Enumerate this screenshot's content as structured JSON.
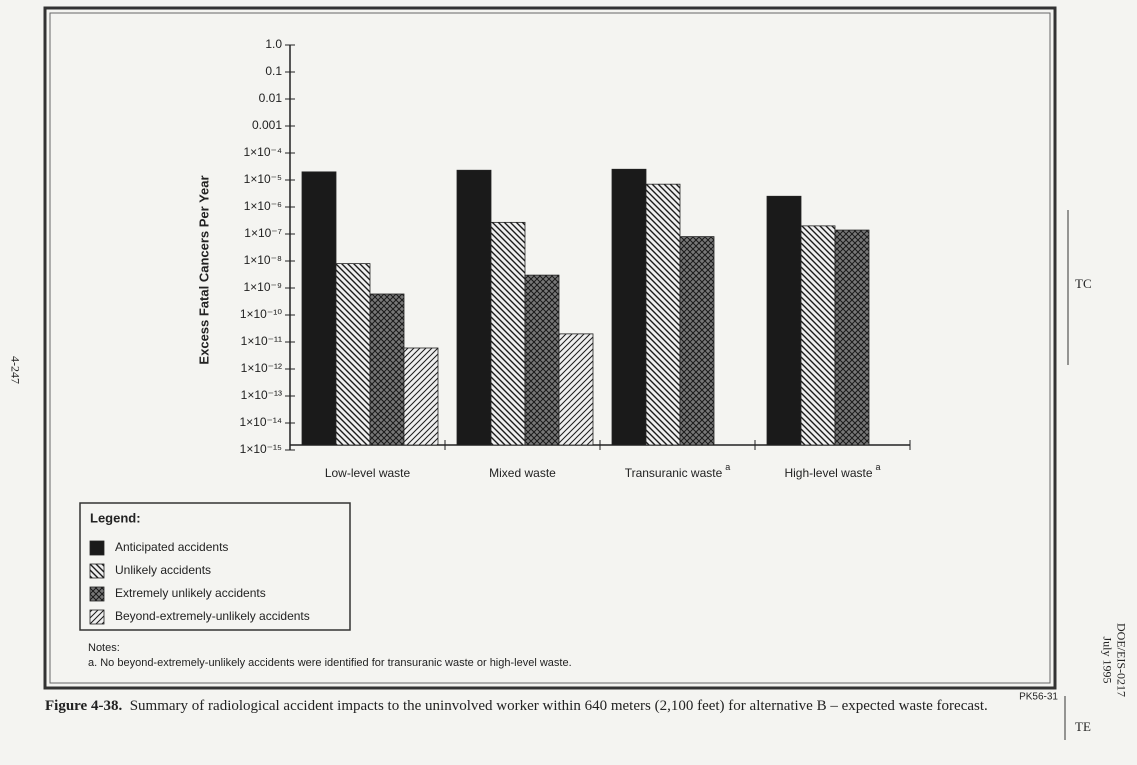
{
  "chart_data": {
    "type": "bar",
    "y_label": "Excess Fatal Cancers Per Year",
    "log_y": true,
    "categories": [
      "Low-level waste",
      "Mixed waste",
      "Transuranic waste",
      "High-level waste"
    ],
    "category_notes": [
      null,
      null,
      "a",
      "a"
    ],
    "series": [
      {
        "name": "Anticipated accidents",
        "color": "#1a1a1a",
        "pattern": "solid",
        "values": [
          2e-05,
          2.3e-05,
          2.5e-05,
          2.5e-06
        ]
      },
      {
        "name": "Unlikely accidents",
        "color": "#1a1a1a",
        "pattern": "hatch",
        "values": [
          8e-09,
          2.7e-07,
          7e-06,
          2e-07
        ]
      },
      {
        "name": "Extremely unlikely accidents",
        "color": "#1a1a1a",
        "pattern": "crosshatch",
        "values": [
          6e-10,
          3e-09,
          8e-08,
          1.4e-07
        ]
      },
      {
        "name": "Beyond-extremely-unlikely accidents",
        "color": "#1a1a1a",
        "pattern": "fine-hatch",
        "values": [
          6e-12,
          2e-11,
          null,
          null
        ]
      }
    ],
    "ylim": [
      1e-15,
      1
    ],
    "yticks": [
      {
        "value": 1,
        "label": "1.0"
      },
      0.1,
      0.01,
      0.001,
      {
        "value": 0.0001,
        "label": "1×10⁻⁴"
      },
      {
        "value": 1e-05,
        "label": "1×10⁻⁵"
      },
      {
        "value": 1e-06,
        "label": "1×10⁻⁶"
      },
      {
        "value": 1e-07,
        "label": "1×10⁻⁷"
      },
      {
        "value": 1e-08,
        "label": "1×10⁻⁸"
      },
      {
        "value": 1e-09,
        "label": "1×10⁻⁹"
      },
      {
        "value": 1e-10,
        "label": "1×10⁻¹⁰"
      },
      {
        "value": 1e-11,
        "label": "1×10⁻¹¹"
      },
      {
        "value": 1e-12,
        "label": "1×10⁻¹²"
      },
      {
        "value": 1e-13,
        "label": "1×10⁻¹³"
      },
      {
        "value": 1e-14,
        "label": "1×10⁻¹⁴"
      },
      {
        "value": 1e-15,
        "label": "1×10⁻¹⁵"
      }
    ],
    "legend_title": "Legend:",
    "notes_title": "Notes:",
    "notes": [
      "a. No beyond-extremely-unlikely accidents were identified for transuranic waste or high-level waste."
    ],
    "figure_code": "PK56-31",
    "figure_label": "Figure 4-38.",
    "caption": "Summary of radiological accident impacts to the uninvolved worker within 640 meters (2,100 feet) for alternative B – expected waste forecast."
  },
  "page": {
    "page_number": "4-247",
    "revision_marks": [
      "TC",
      "TE"
    ],
    "doc_id": "DOE/EIS-0217",
    "date": "July 1995"
  }
}
